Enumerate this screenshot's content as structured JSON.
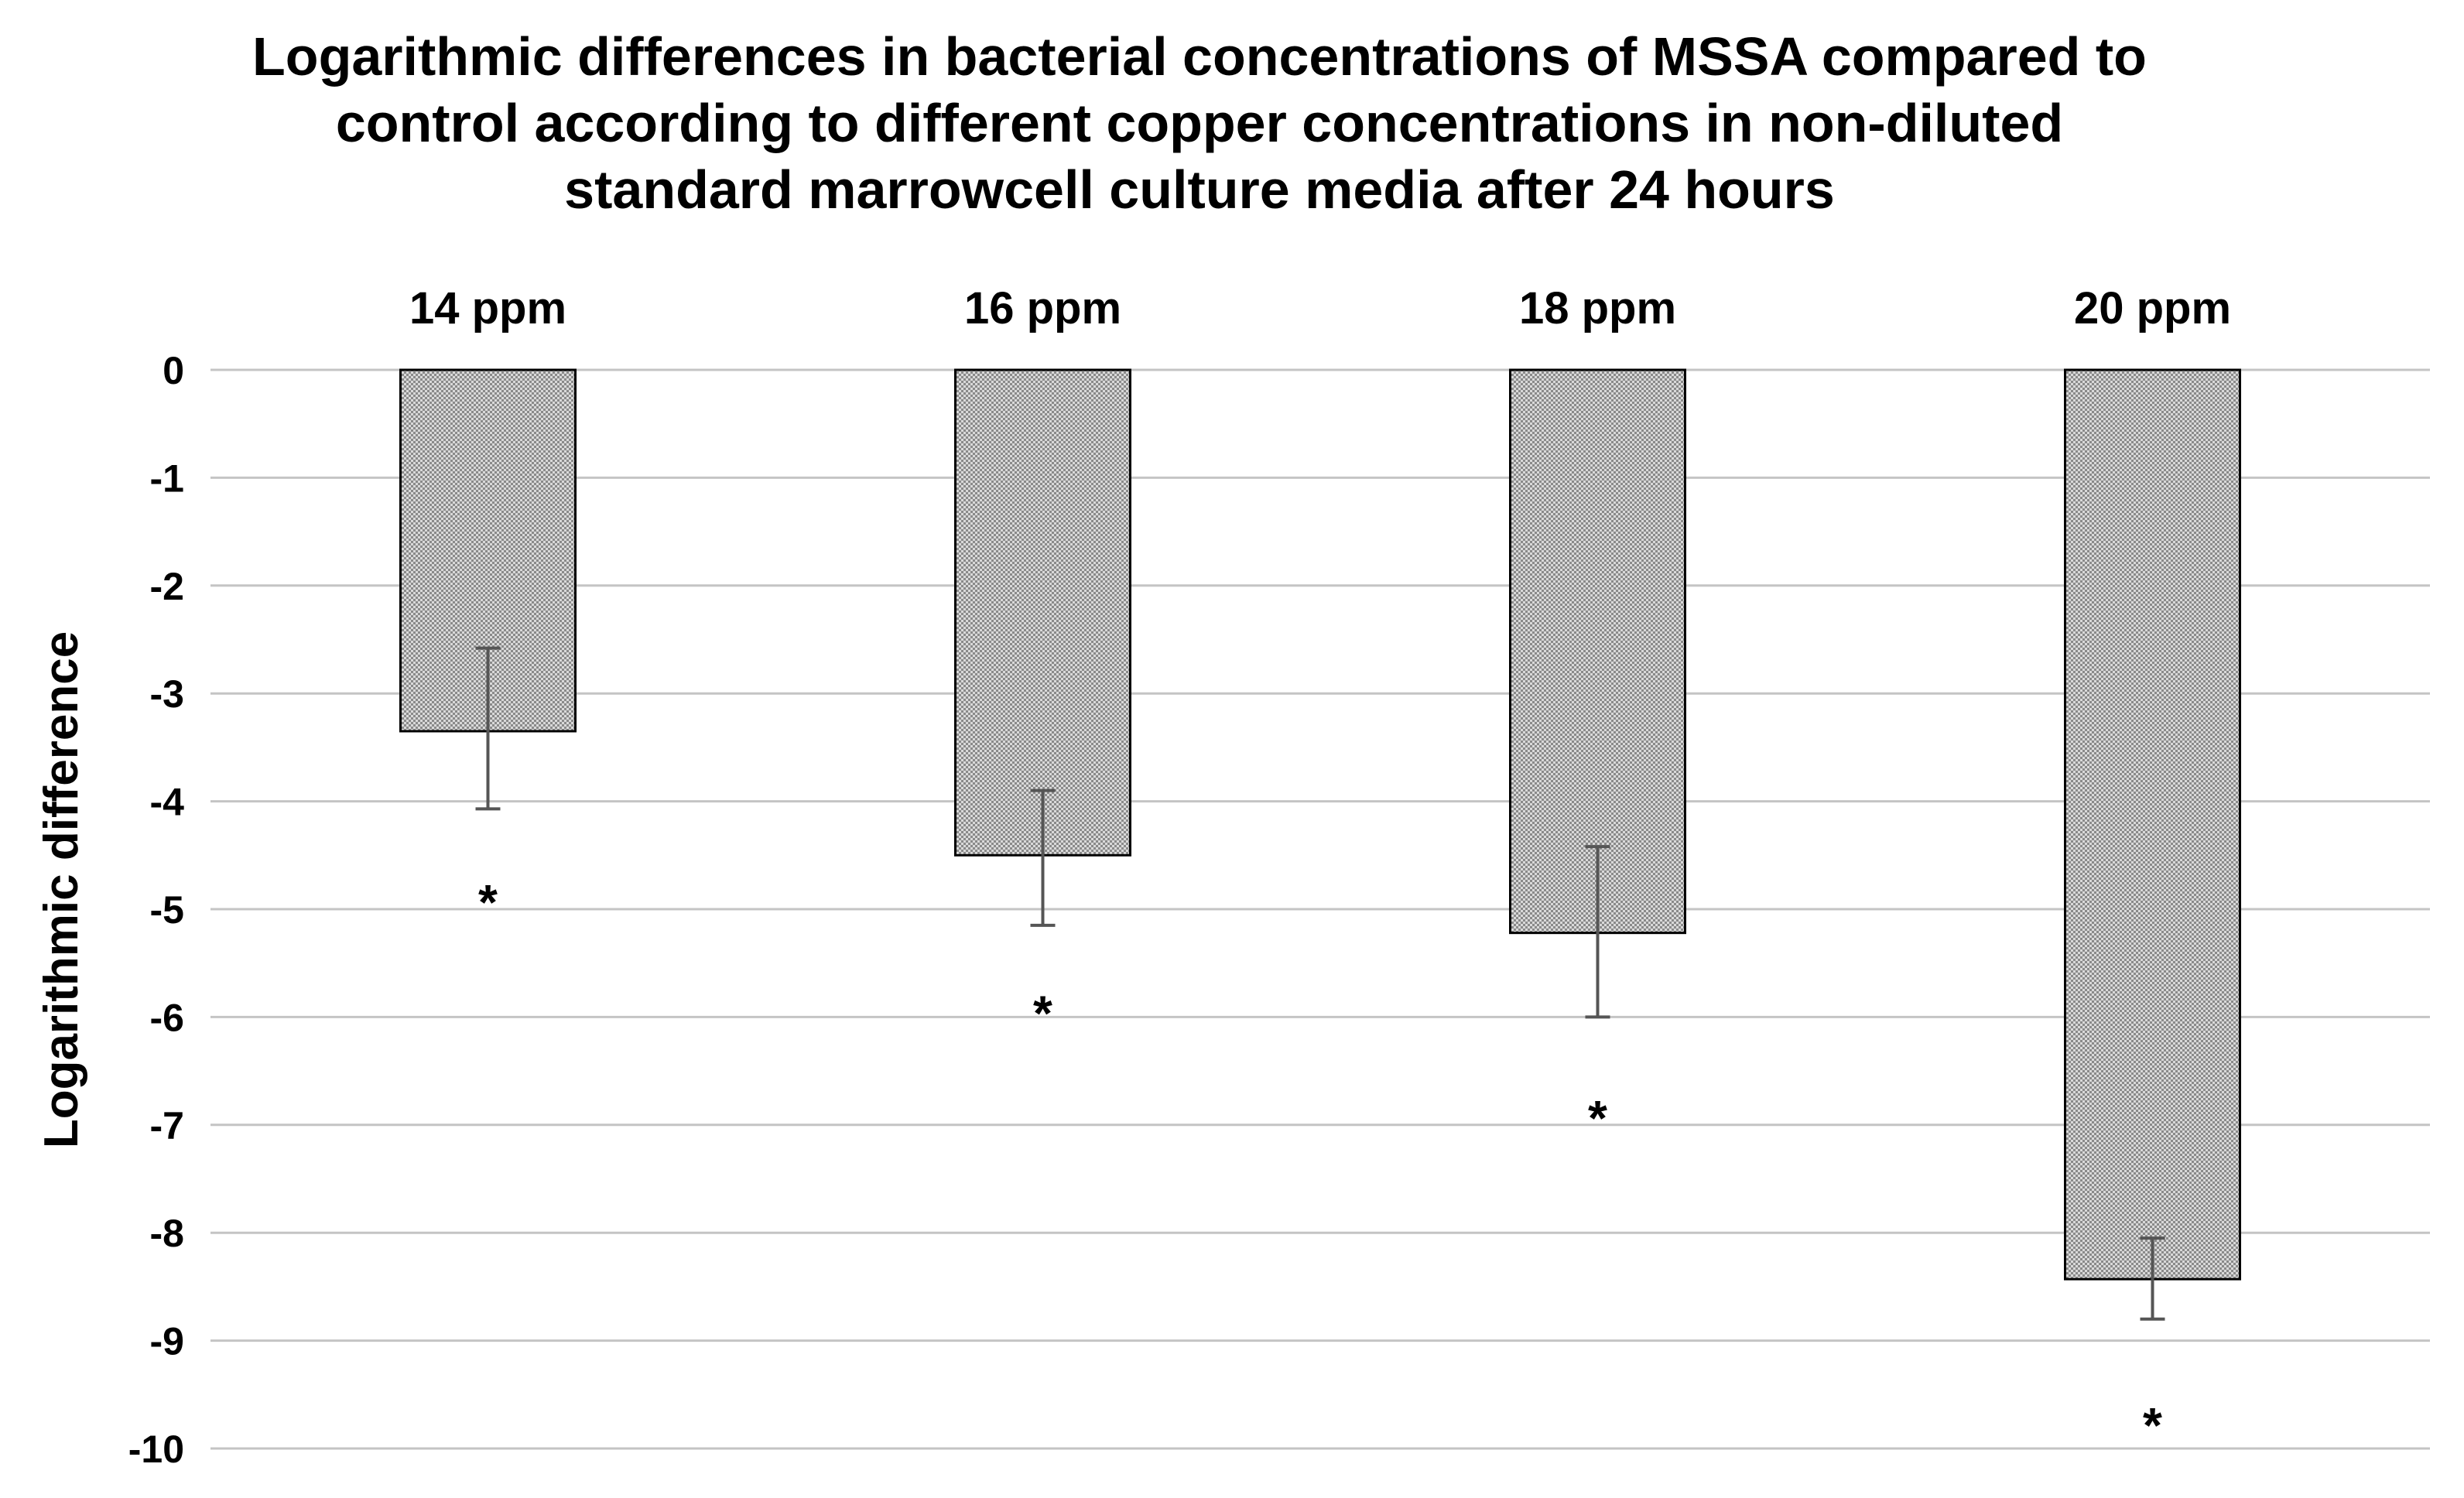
{
  "chart_data": {
    "type": "bar",
    "title_lines": [
      "Logarithmic differences in bacterial concentrations of MSSA compared to",
      "control according to different  copper concentrations in non-diluted",
      "standard marrowcell culture media  after 24 hours"
    ],
    "title": "Logarithmic differences in bacterial concentrations of MSSA compared to control according to different  copper concentrations in non-diluted standard marrowcell culture media  after 24 hours",
    "xlabel": "",
    "ylabel": "Logarithmic difference",
    "categories": [
      "14 ppm",
      "16 ppm",
      "18 ppm",
      "20 ppm"
    ],
    "values": [
      -3.35,
      -4.5,
      -5.22,
      -8.43
    ],
    "error_upper": [
      -2.58,
      -3.9,
      -4.42,
      -8.05
    ],
    "error_lower": [
      -4.07,
      -5.15,
      -6.0,
      -8.8
    ],
    "significance": [
      "*",
      "*",
      "*",
      "*"
    ],
    "significance_y": [
      -4.85,
      -5.88,
      -6.85,
      -9.7
    ],
    "ylim": [
      -10,
      0
    ],
    "yticks": [
      0,
      -1,
      -2,
      -3,
      -4,
      -5,
      -6,
      -7,
      -8,
      -9,
      -10
    ],
    "ytick_labels": [
      "0",
      "-1",
      "-2",
      "-3",
      "-4",
      "-5",
      "-6",
      "-7",
      "-8",
      "-9",
      "-10"
    ],
    "grid": true,
    "x_axis_position": "top",
    "colors": {
      "bar_fill": "#c8c8c8",
      "bar_stroke": "#000000",
      "grid": "#c4c4c4",
      "error_bar": "#555555"
    }
  }
}
